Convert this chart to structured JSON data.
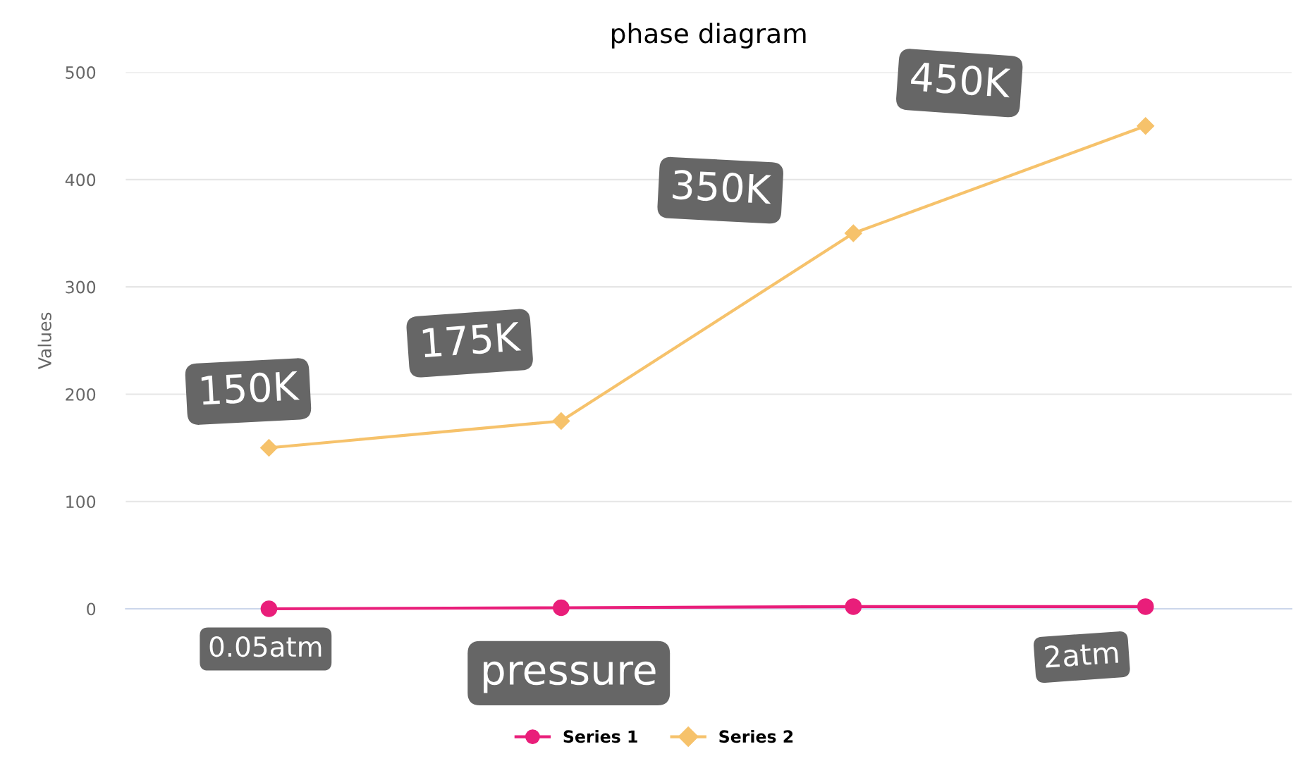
{
  "chart_data": {
    "type": "line",
    "title": "phase diagram",
    "ylabel": "Values",
    "categories": [
      null,
      null,
      null,
      null
    ],
    "series": [
      {
        "name": "Series 1",
        "color": "#e91e7a",
        "values": [
          0,
          1,
          2,
          2
        ]
      },
      {
        "name": "Series 2",
        "color": "#f6c26b",
        "values": [
          150,
          175,
          350,
          450
        ],
        "marker": "diamond"
      }
    ],
    "marker": "circle",
    "line_style": "solid",
    "ylim": [
      0,
      500
    ],
    "yticks": [
      0,
      100,
      200,
      300,
      400,
      500
    ],
    "grid": "y",
    "legend": "bottom",
    "annotations": [
      "150K",
      "175K",
      "350K",
      "450K",
      "0.05atm",
      "pressure",
      "2atm"
    ]
  }
}
